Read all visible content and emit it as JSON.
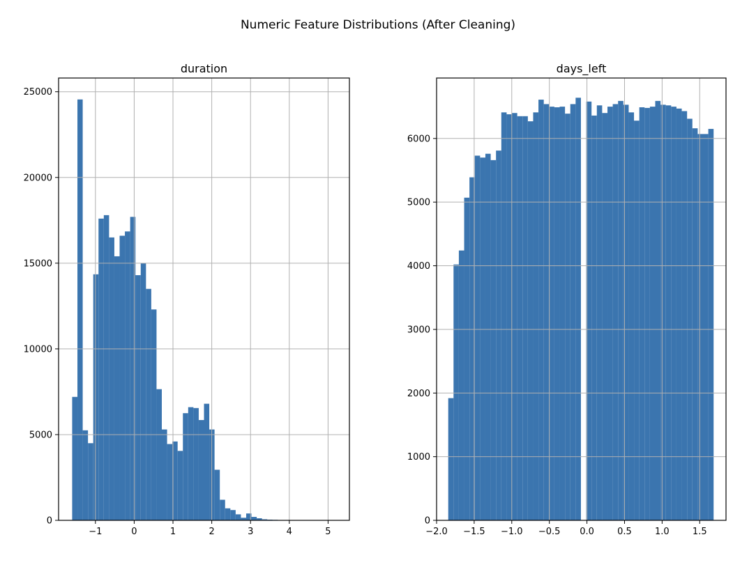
{
  "figure": {
    "title": "Numeric Feature Distributions (After Cleaning)",
    "bar_color": "#3b75af",
    "grid_color": "#b0b0b0"
  },
  "chart_data": [
    {
      "type": "bar",
      "title": "duration",
      "xlabel": "",
      "ylabel": "",
      "grid": true,
      "xlim": [
        -1.95,
        5.55
      ],
      "ylim": [
        0,
        25800
      ],
      "xticks": [
        -1,
        0,
        1,
        2,
        3,
        4,
        5
      ],
      "xtick_labels": [
        "−1",
        "0",
        "1",
        "2",
        "3",
        "4",
        "5"
      ],
      "yticks": [
        0,
        5000,
        10000,
        15000,
        20000,
        25000
      ],
      "ytick_labels": [
        "0",
        "5000",
        "10000",
        "15000",
        "20000",
        "25000"
      ],
      "bin_start": -1.6,
      "bin_width": 0.136,
      "values": [
        7200,
        24550,
        5250,
        4500,
        14350,
        17600,
        17800,
        16500,
        15400,
        16600,
        16850,
        17700,
        14300,
        15000,
        13500,
        12300,
        7650,
        5300,
        4450,
        4600,
        4050,
        6250,
        6600,
        6550,
        5850,
        6800,
        5300,
        2950,
        1200,
        700,
        600,
        350,
        150,
        400,
        200,
        120,
        60,
        40,
        30,
        20,
        15,
        12,
        10,
        8,
        6,
        5,
        4,
        3,
        2,
        2
      ]
    },
    {
      "type": "bar",
      "title": "days_left",
      "xlabel": "",
      "ylabel": "",
      "grid": true,
      "xlim": [
        -2.0,
        1.85
      ],
      "ylim": [
        0,
        6950
      ],
      "xticks": [
        -2.0,
        -1.5,
        -1.0,
        -0.5,
        0.0,
        0.5,
        1.0,
        1.5
      ],
      "xtick_labels": [
        "−2.0",
        "−1.5",
        "−1.0",
        "−0.5",
        "0.0",
        "0.5",
        "1.0",
        "1.5"
      ],
      "yticks": [
        0,
        1000,
        2000,
        3000,
        4000,
        5000,
        6000
      ],
      "ytick_labels": [
        "0",
        "1000",
        "2000",
        "3000",
        "4000",
        "5000",
        "6000"
      ],
      "bin_start": -1.845,
      "bin_width": 0.0706,
      "values": [
        1920,
        4020,
        4240,
        5070,
        5390,
        5730,
        5700,
        5760,
        5660,
        5810,
        6410,
        6380,
        6400,
        6350,
        6350,
        6270,
        6410,
        6610,
        6540,
        6500,
        6490,
        6500,
        6390,
        6540,
        6640,
        0,
        6580,
        6360,
        6520,
        6400,
        6500,
        6540,
        6590,
        6530,
        6410,
        6280,
        6490,
        6480,
        6500,
        6590,
        6530,
        6520,
        6500,
        6470,
        6430,
        6310,
        6160,
        6070,
        6070,
        6150
      ]
    }
  ]
}
